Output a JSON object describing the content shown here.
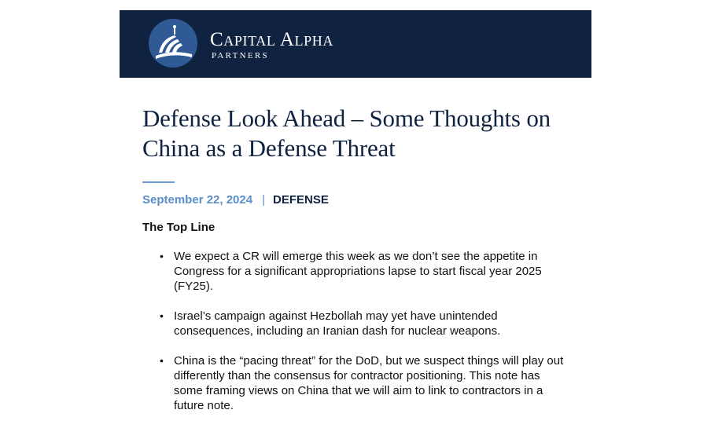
{
  "header": {
    "brand_name": "Capital Alpha",
    "brand_subtitle": "PARTNERS",
    "colors": {
      "banner": "#0f2340",
      "logo_circle": "#2f5a95"
    },
    "logo_icon": "capitol-dome-logo"
  },
  "article": {
    "title": "Defense Look Ahead – Some Thoughts on China as a Defense Threat",
    "date": "September 22, 2024",
    "separator": "|",
    "category": "DEFENSE",
    "section_heading": "The Top Line",
    "bullets": [
      "We expect a CR will emerge this week as we don’t see the appetite in Congress for a significant appropriations lapse to start fiscal year 2025 (FY25).",
      "Israel’s campaign against Hezbollah may yet have unintended consequences, including an Iranian dash for nuclear weapons.",
      "China is the “pacing threat” for the DoD, but we suspect things will play out differently than the consensus for contractor positioning. This note has some framing views on China that we will aim to link to contractors in a future note."
    ],
    "bullet_glyph": "•",
    "colors": {
      "title": "#0f2340",
      "date": "#5b8ec9",
      "accent_rule": "#6d9bd0"
    }
  }
}
